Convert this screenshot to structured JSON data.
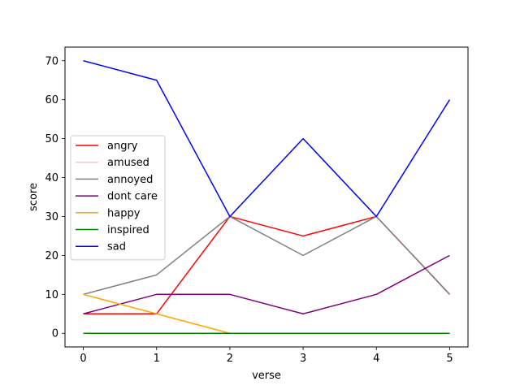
{
  "chart_data": {
    "type": "line",
    "title": "",
    "xlabel": "verse",
    "ylabel": "score",
    "x": [
      0,
      1,
      2,
      3,
      4,
      5
    ],
    "xticks": [
      "0",
      "1",
      "2",
      "3",
      "4",
      "5"
    ],
    "yticks": [
      "0",
      "10",
      "20",
      "30",
      "40",
      "50",
      "60",
      "70"
    ],
    "xlim": [
      -0.25,
      5.25
    ],
    "ylim": [
      -3.5,
      73.5
    ],
    "grid": false,
    "legend_position": "center-left",
    "series": [
      {
        "name": "angry",
        "color": "#ff0000",
        "values": [
          5,
          5,
          30,
          25,
          30,
          10
        ]
      },
      {
        "name": "amused",
        "color": "#ffc0cb",
        "values": [
          0,
          0,
          0,
          0,
          0,
          0
        ]
      },
      {
        "name": "annoyed",
        "color": "#808080",
        "values": [
          10,
          15,
          30,
          20,
          30,
          10
        ]
      },
      {
        "name": "dont care",
        "color": "#800080",
        "values": [
          5,
          10,
          10,
          5,
          10,
          20
        ]
      },
      {
        "name": "happy",
        "color": "#ffa500",
        "values": [
          10,
          5,
          0,
          0,
          0,
          0
        ]
      },
      {
        "name": "inspired",
        "color": "#008000",
        "values": [
          0,
          0,
          0,
          0,
          0,
          0
        ]
      },
      {
        "name": "sad",
        "color": "#0000ff",
        "values": [
          70,
          65,
          30,
          50,
          30,
          60
        ]
      }
    ]
  }
}
